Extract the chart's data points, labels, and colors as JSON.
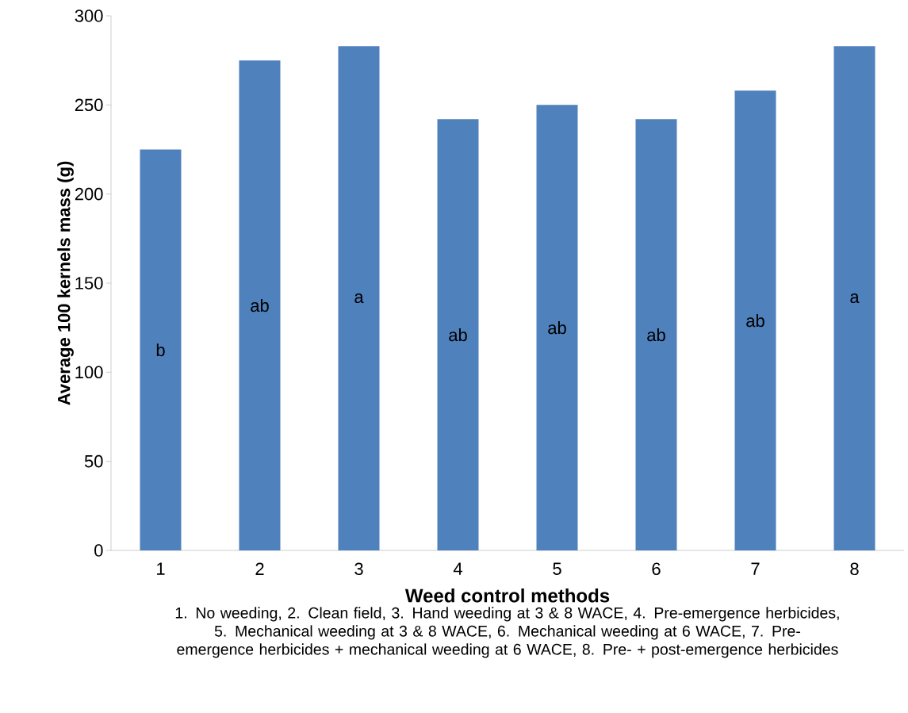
{
  "chart_data": {
    "type": "bar",
    "xlabel": "Weed control methods",
    "ylabel": "Average 100 kernels mass (g)",
    "categories": [
      "1",
      "2",
      "3",
      "4",
      "5",
      "6",
      "7",
      "8"
    ],
    "values": [
      225,
      275,
      283,
      242,
      250,
      242,
      258,
      283
    ],
    "color": "#4f81bd",
    "ylim": [
      0,
      300
    ],
    "yticks": [
      0,
      50,
      100,
      150,
      200,
      250,
      300
    ],
    "grid": false,
    "value_labels": [
      "b",
      "ab",
      "a",
      "ab",
      "ab",
      "ab",
      "ab",
      "a"
    ],
    "annotations": [
      "1. No weeding, 2. Clean field, 3. Hand weeding at 3 & 8 WACE, 4. Pre-emergence herbicides, 5.  Mechanical weeding at 3 & 8 WACE, 6. Mechanical weeding at 6 WACE, 7. Pre-emergence herbicides + mechanical weeding at 6 WACE, 8. Pre- + post-emergence herbicides"
    ]
  }
}
